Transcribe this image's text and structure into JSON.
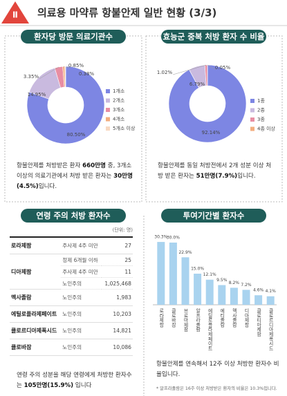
{
  "title": {
    "badge": "Ⅱ",
    "text": "의료용 마약류 항불안제 일반 현황 (3/3)"
  },
  "chart_data": [
    {
      "type": "pie",
      "title": "환자당 방문 의료기관수",
      "categories": [
        "1개소",
        "2개소",
        "3개소",
        "4개소",
        "5개소 이상"
      ],
      "values": [
        80.5,
        14.95,
        3.35,
        0.85,
        0.38
      ],
      "value_labels": [
        "80.50%",
        "14.95%",
        "3.35%",
        "0.85%",
        "0.38%"
      ],
      "colors": [
        "#7d86e3",
        "#c9badf",
        "#e88ea3",
        "#f3ad7e",
        "#f8d9c2"
      ],
      "note": [
        {
          "text": "항불안제를 처방받은 환자 "
        },
        {
          "text": "660만명",
          "bold": true
        },
        {
          "text": " 중, 3개소 이상의 의료기관에서 처방 받은 환자는 "
        },
        {
          "text": "30만명(4.5%)",
          "bold": true
        },
        {
          "text": "입니다."
        }
      ]
    },
    {
      "type": "pie",
      "title": "효능군 중복 처방 환자 수 비율",
      "categories": [
        "1종",
        "2종",
        "3종",
        "4종 이상"
      ],
      "values": [
        92.14,
        6.79,
        1.02,
        0.05
      ],
      "value_labels": [
        "92.14%",
        "6.79%",
        "1.02%",
        "0.05%"
      ],
      "colors": [
        "#7d86e3",
        "#c9badf",
        "#e88ea3",
        "#f3ad7e"
      ],
      "note": [
        {
          "text": "항불안제를 동일 처방전에서 2개 성분 이상 처방 받은 환자는 "
        },
        {
          "text": "51만명(7.9%)",
          "bold": true
        },
        {
          "text": "입니다."
        }
      ]
    },
    {
      "type": "bar",
      "title": "투여기간별 환자수",
      "categories": [
        "로라제팜",
        "클로바잠",
        "브로마제팜",
        "알프라졸람",
        "에틸로플라제페이트",
        "에티졸람",
        "멕사졸람",
        "디아제팜",
        "클로티아제팜",
        "클로르디아제폭시드"
      ],
      "values": [
        30.3,
        30.0,
        22.9,
        15.0,
        12.1,
        9.5,
        8.2,
        7.2,
        4.6,
        4.1
      ],
      "value_labels": [
        "30.3%",
        "30.0%",
        "22.9%",
        "15.0%",
        "12.1%",
        "9.5%",
        "8.2%",
        "7.2%",
        "4.6%",
        "4.1%"
      ],
      "color": "#a9d3ef",
      "ylim": [
        0,
        35
      ],
      "note": [
        {
          "text": "항불안제를 연속해서 12주 이상 처방한 환자수 비율입니다."
        }
      ],
      "footnote": "* 알프라졸람은 16주 이상 처방받은 환자의 비율은 10.3%입니다."
    }
  ],
  "table": {
    "title": "연령 주의 처방 환자수",
    "unit": "(단위: 명)",
    "rows": [
      [
        "로라제팜",
        "주사제 4주 미만",
        "27"
      ],
      [
        "디아제팜",
        "정제 6개월 이하",
        "25"
      ],
      [
        null,
        "주사제 4주 미만",
        "11"
      ],
      [
        null,
        "노인주의",
        "1,025,468"
      ],
      [
        "멕사졸람",
        "노인주의",
        "1,983"
      ],
      [
        "에틸로플라제페이트",
        "노인주의",
        "10,203"
      ],
      [
        "클로르디아제폭시드",
        "노인주의",
        "14,821"
      ],
      [
        "클로바잠",
        "노인주의",
        "10,086"
      ]
    ],
    "note": [
      {
        "text": "연령 주의 성분을 해당 연령에게 처방한 환자수는 "
      },
      {
        "text": "105만명(15.9%)",
        "bold": true
      },
      {
        "text": " 입니다"
      }
    ]
  }
}
